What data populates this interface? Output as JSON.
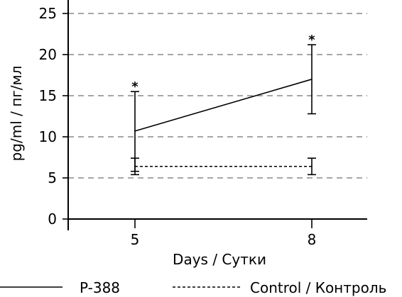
{
  "chart_data": {
    "type": "line",
    "title": "",
    "xlabel": "Days / Сутки",
    "ylabel": "pg/ml / пг/мл",
    "x": [
      5,
      8
    ],
    "x_tick_labels": [
      "5",
      "8"
    ],
    "y_ticks": [
      0,
      5,
      10,
      15,
      20,
      25
    ],
    "ylim": [
      0,
      26
    ],
    "grid": "horizontal dashed",
    "legend_position": "bottom",
    "series": [
      {
        "name": "P-388",
        "style": "solid",
        "values": [
          10.7,
          17.0
        ],
        "error_low": [
          5.8,
          12.8
        ],
        "error_high": [
          15.5,
          21.2
        ],
        "annotations": [
          "*",
          "*"
        ]
      },
      {
        "name": "Control / Контроль",
        "style": "dashed",
        "values": [
          6.4,
          6.4
        ],
        "error_low": [
          5.4,
          5.4
        ],
        "error_high": [
          7.4,
          7.4
        ],
        "annotations": [
          "",
          ""
        ]
      }
    ]
  }
}
